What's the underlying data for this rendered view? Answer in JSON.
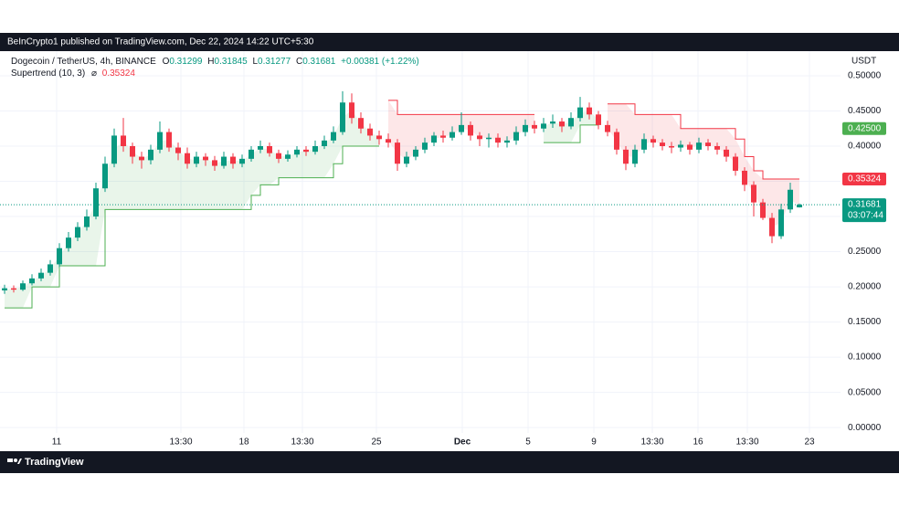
{
  "published": "BeInCrypto1 published on TradingView.com, Dec 22, 2024 14:22 UTC+5:30",
  "footer": "TradingView",
  "chart_data": {
    "type": "candlestick",
    "symbol": "Dogecoin / TetherUS, 4h, BINANCE",
    "ohlc_labels": [
      "O",
      "H",
      "L",
      "C"
    ],
    "change": "+0.00381 (+1.22%)",
    "indicator": {
      "name": "Supertrend (10, 3)",
      "symbol": "⌀"
    },
    "unit": "USDT",
    "countdown": "03:07:44",
    "alert_level": {
      "value": 0.425,
      "label": "0.42500",
      "color": "#4caf50"
    },
    "up_color": "#089981",
    "down_color": "#f23645",
    "open": [
      0.195,
      0.198,
      0.196,
      0.205,
      0.212,
      0.22,
      0.232,
      0.255,
      0.27,
      0.285,
      0.3,
      0.34,
      0.375,
      0.415,
      0.4,
      0.385,
      0.38,
      0.395,
      0.42,
      0.398,
      0.39,
      0.375,
      0.385,
      0.38,
      0.372,
      0.385,
      0.375,
      0.382,
      0.395,
      0.4,
      0.39,
      0.382,
      0.388,
      0.395,
      0.392,
      0.4,
      0.408,
      0.42,
      0.462,
      0.44,
      0.425,
      0.415,
      0.41,
      0.405,
      0.375,
      0.385,
      0.395,
      0.405,
      0.415,
      0.412,
      0.42,
      0.43,
      0.415,
      0.41,
      0.412,
      0.405,
      0.408,
      0.42,
      0.43,
      0.425,
      0.432,
      0.435,
      0.428,
      0.44,
      0.455,
      0.445,
      0.43,
      0.42,
      0.395,
      0.375,
      0.395,
      0.41,
      0.405,
      0.4,
      0.398,
      0.402,
      0.395,
      0.405,
      0.4,
      0.395,
      0.385,
      0.365,
      0.345,
      0.32,
      0.298,
      0.272,
      0.31,
      0.31299
    ],
    "high": [
      0.203,
      0.202,
      0.209,
      0.218,
      0.226,
      0.238,
      0.262,
      0.278,
      0.292,
      0.31,
      0.348,
      0.385,
      0.425,
      0.44,
      0.405,
      0.392,
      0.402,
      0.435,
      0.425,
      0.405,
      0.398,
      0.392,
      0.39,
      0.386,
      0.392,
      0.39,
      0.388,
      0.4,
      0.408,
      0.405,
      0.395,
      0.394,
      0.4,
      0.4,
      0.408,
      0.415,
      0.428,
      0.478,
      0.475,
      0.448,
      0.432,
      0.422,
      0.418,
      0.41,
      0.392,
      0.4,
      0.412,
      0.42,
      0.422,
      0.428,
      0.448,
      0.435,
      0.42,
      0.418,
      0.418,
      0.414,
      0.428,
      0.438,
      0.436,
      0.44,
      0.445,
      0.44,
      0.448,
      0.47,
      0.462,
      0.45,
      0.436,
      0.425,
      0.4,
      0.402,
      0.418,
      0.415,
      0.41,
      0.406,
      0.408,
      0.406,
      0.412,
      0.41,
      0.405,
      0.4,
      0.39,
      0.37,
      0.35,
      0.325,
      0.305,
      0.318,
      0.348,
      0.31845
    ],
    "low": [
      0.19,
      0.192,
      0.194,
      0.202,
      0.208,
      0.216,
      0.228,
      0.25,
      0.265,
      0.28,
      0.296,
      0.335,
      0.37,
      0.392,
      0.375,
      0.368,
      0.374,
      0.39,
      0.392,
      0.38,
      0.368,
      0.37,
      0.372,
      0.365,
      0.368,
      0.368,
      0.37,
      0.378,
      0.39,
      0.385,
      0.376,
      0.378,
      0.384,
      0.386,
      0.388,
      0.396,
      0.404,
      0.416,
      0.432,
      0.418,
      0.408,
      0.402,
      0.398,
      0.365,
      0.37,
      0.38,
      0.39,
      0.4,
      0.405,
      0.408,
      0.416,
      0.408,
      0.4,
      0.398,
      0.398,
      0.398,
      0.402,
      0.414,
      0.418,
      0.42,
      0.426,
      0.42,
      0.424,
      0.435,
      0.438,
      0.424,
      0.414,
      0.388,
      0.366,
      0.37,
      0.39,
      0.398,
      0.394,
      0.39,
      0.392,
      0.388,
      0.39,
      0.394,
      0.388,
      0.378,
      0.358,
      0.336,
      0.3,
      0.295,
      0.262,
      0.268,
      0.305,
      0.31277
    ],
    "close": [
      0.198,
      0.196,
      0.205,
      0.212,
      0.22,
      0.232,
      0.255,
      0.27,
      0.285,
      0.3,
      0.34,
      0.375,
      0.415,
      0.4,
      0.385,
      0.38,
      0.395,
      0.42,
      0.398,
      0.39,
      0.375,
      0.385,
      0.38,
      0.372,
      0.385,
      0.375,
      0.382,
      0.395,
      0.4,
      0.39,
      0.382,
      0.388,
      0.395,
      0.392,
      0.4,
      0.408,
      0.42,
      0.462,
      0.44,
      0.425,
      0.415,
      0.41,
      0.405,
      0.375,
      0.385,
      0.395,
      0.405,
      0.415,
      0.412,
      0.42,
      0.43,
      0.415,
      0.41,
      0.412,
      0.405,
      0.408,
      0.42,
      0.43,
      0.425,
      0.432,
      0.435,
      0.428,
      0.44,
      0.455,
      0.445,
      0.43,
      0.42,
      0.395,
      0.375,
      0.395,
      0.41,
      0.405,
      0.4,
      0.398,
      0.402,
      0.395,
      0.405,
      0.4,
      0.395,
      0.385,
      0.365,
      0.345,
      0.32,
      0.298,
      0.272,
      0.31,
      0.338,
      0.31681
    ],
    "series": [
      {
        "name": "Supertrend up",
        "color": "#4caf50",
        "fill": "rgba(76,175,80,0.12)",
        "values": [
          0.17,
          0.17,
          0.17,
          0.2,
          0.2,
          0.2,
          0.23,
          0.23,
          0.23,
          0.23,
          0.23,
          0.31,
          0.31,
          0.31,
          0.31,
          0.31,
          0.31,
          0.31,
          0.31,
          0.31,
          0.31,
          0.31,
          0.31,
          0.31,
          0.31,
          0.31,
          0.31,
          0.33,
          0.345,
          0.345,
          0.355,
          0.355,
          0.355,
          0.355,
          0.355,
          0.355,
          0.375,
          0.4,
          0.4,
          0.4,
          0.4,
          0.4,
          null,
          null,
          null,
          null,
          null,
          null,
          null,
          null,
          null,
          null,
          null,
          null,
          null,
          null,
          null,
          null,
          null,
          0.405,
          0.405,
          0.405,
          0.405,
          0.43,
          0.43,
          0.43,
          null,
          null,
          null,
          null,
          null,
          null,
          null,
          null,
          null,
          null,
          null,
          null,
          null,
          null,
          null,
          null,
          null,
          null,
          null,
          null,
          null,
          null
        ]
      },
      {
        "name": "Supertrend down",
        "color": "#f23645",
        "fill": "rgba(242,54,69,0.12)",
        "values": [
          null,
          null,
          null,
          null,
          null,
          null,
          null,
          null,
          null,
          null,
          null,
          null,
          null,
          null,
          null,
          null,
          null,
          null,
          null,
          null,
          null,
          null,
          null,
          null,
          null,
          null,
          null,
          null,
          null,
          null,
          null,
          null,
          null,
          null,
          null,
          null,
          null,
          null,
          null,
          null,
          null,
          null,
          0.465,
          0.445,
          0.445,
          0.445,
          0.445,
          0.445,
          0.445,
          0.445,
          0.445,
          0.445,
          0.445,
          0.445,
          0.445,
          0.445,
          0.445,
          0.445,
          0.445,
          null,
          null,
          null,
          null,
          null,
          null,
          null,
          0.46,
          0.46,
          0.46,
          0.445,
          0.445,
          0.445,
          0.445,
          0.445,
          0.425,
          0.425,
          0.425,
          0.425,
          0.425,
          0.425,
          0.41,
          0.385,
          0.365,
          0.35324,
          0.35324,
          0.35324,
          0.35324,
          0.35324
        ]
      }
    ],
    "xlim": [
      -0.5,
      91.5
    ],
    "xticks": [
      {
        "value": 5.7,
        "label": "11"
      },
      {
        "value": 19.3,
        "label": "13:30"
      },
      {
        "value": 26.2,
        "label": "18"
      },
      {
        "value": 32.6,
        "label": "13:30"
      },
      {
        "value": 40.7,
        "label": "25"
      },
      {
        "value": 50.1,
        "label": "Dec"
      },
      {
        "value": 57.3,
        "label": "5"
      },
      {
        "value": 64.5,
        "label": "9"
      },
      {
        "value": 70.9,
        "label": "13:30"
      },
      {
        "value": 75.9,
        "label": "16"
      },
      {
        "value": 81.3,
        "label": "13:30"
      },
      {
        "value": 88.1,
        "label": "23"
      }
    ],
    "ylim": [
      -0.018,
      0.535
    ],
    "yticks": [
      {
        "value": 0,
        "label": "0.00000"
      },
      {
        "value": 0.05,
        "label": "0.05000"
      },
      {
        "value": 0.1,
        "label": "0.10000"
      },
      {
        "value": 0.15,
        "label": "0.15000"
      },
      {
        "value": 0.2,
        "label": "0.20000"
      },
      {
        "value": 0.25,
        "label": "0.25000"
      },
      {
        "value": 0.3,
        "label": "0.30000"
      },
      {
        "value": 0.35,
        "label": "0.35000"
      },
      {
        "value": 0.4,
        "label": "0.40000"
      },
      {
        "value": 0.45,
        "label": "0.45000"
      },
      {
        "value": 0.5,
        "label": "0.50000"
      }
    ],
    "grid": true
  }
}
